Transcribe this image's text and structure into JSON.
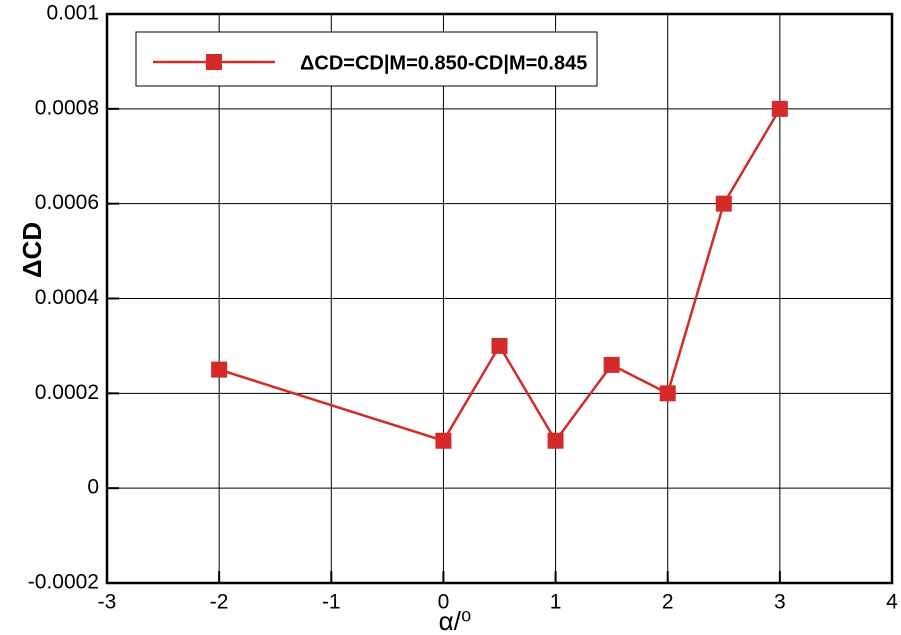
{
  "chart_data": {
    "type": "line",
    "x_label": "α/⁰",
    "y_label": "ΔCD",
    "x": [
      -2,
      0,
      0.5,
      1,
      1.5,
      2,
      2.5,
      3
    ],
    "series": [
      {
        "name": "ΔCD=CD|M=0.850-CD|M=0.845",
        "color": "#d42a2a",
        "values": [
          0.00025,
          0.0001,
          0.0003,
          0.0001,
          0.00026,
          0.0002,
          0.0006,
          0.0008
        ]
      }
    ],
    "xlim": [
      -3,
      4
    ],
    "xticks": [
      -3,
      -2,
      -1,
      0,
      1,
      2,
      3,
      4
    ],
    "ylim": [
      -0.0002,
      0.001
    ],
    "yticks": [
      -0.0002,
      0,
      0.0002,
      0.0004,
      0.0006,
      0.0008,
      0.001
    ],
    "grid": true,
    "legend": "top-left"
  }
}
